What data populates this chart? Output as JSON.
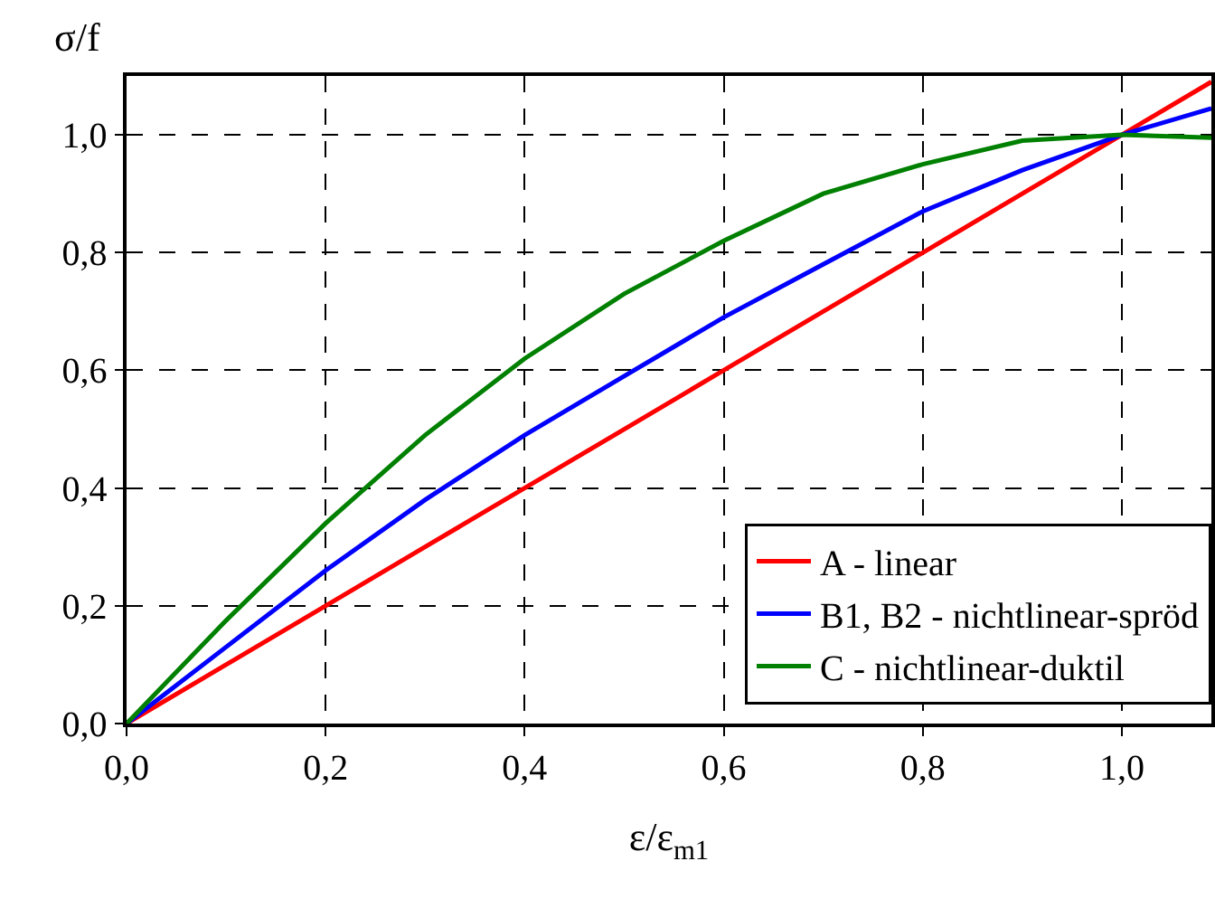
{
  "chart_data": {
    "type": "line",
    "xlabel": "ε/ε$_{m1}$",
    "ylabel": "σ/f",
    "x": [
      0,
      0.1,
      0.2,
      0.3,
      0.4,
      0.5,
      0.6,
      0.7,
      0.8,
      0.9,
      1.0,
      1.09
    ],
    "series": [
      {
        "name": "A - linear",
        "color": "#ff0000",
        "values": [
          0,
          0.1,
          0.2,
          0.3,
          0.4,
          0.5,
          0.6,
          0.7,
          0.8,
          0.9,
          1.0,
          1.09
        ]
      },
      {
        "name": "B1, B2 - nichtlinear-spröd",
        "color": "#0000ff",
        "values": [
          0,
          0.13,
          0.26,
          0.38,
          0.49,
          0.59,
          0.69,
          0.78,
          0.87,
          0.94,
          1.0,
          1.045
        ]
      },
      {
        "name": "C - nichtlinear-duktil",
        "color": "#008000",
        "values": [
          0,
          0.175,
          0.34,
          0.49,
          0.62,
          0.73,
          0.82,
          0.9,
          0.95,
          0.99,
          1.0,
          0.995
        ]
      }
    ],
    "xlim": [
      0,
      1.09
    ],
    "ylim": [
      0,
      1.1
    ],
    "xticks": [
      {
        "value": 0,
        "label": "0,0"
      },
      {
        "value": 0.2,
        "label": "0,2"
      },
      {
        "value": 0.4,
        "label": "0,4"
      },
      {
        "value": 0.6,
        "label": "0,6"
      },
      {
        "value": 0.8,
        "label": "0,8"
      },
      {
        "value": 1.0,
        "label": "1,0"
      }
    ],
    "yticks": [
      {
        "value": 0,
        "label": "0,0"
      },
      {
        "value": 0.2,
        "label": "0,2"
      },
      {
        "value": 0.4,
        "label": "0,4"
      },
      {
        "value": 0.6,
        "label": "0,6"
      },
      {
        "value": 0.8,
        "label": "0,8"
      },
      {
        "value": 1.0,
        "label": "1,0"
      }
    ],
    "grid": true,
    "legend": "bottom right",
    "marker": "none",
    "line_style": "solid"
  }
}
